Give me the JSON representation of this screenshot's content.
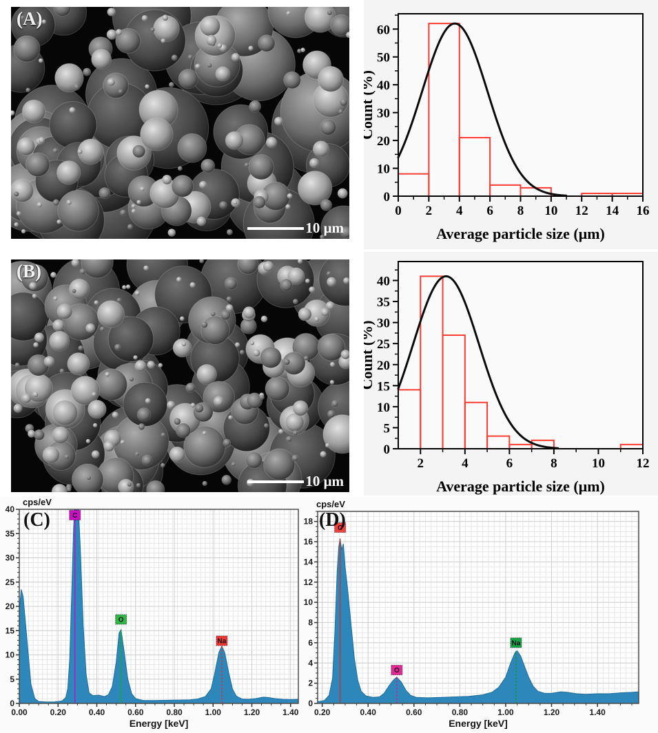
{
  "figure": {
    "panels": {
      "a": {
        "letter": "(A)",
        "scalebar": "10 μm"
      },
      "b": {
        "letter": "(B)",
        "scalebar": "10 μm"
      },
      "c": {
        "letter": "(C)"
      },
      "d": {
        "letter": "(D)"
      }
    }
  },
  "chart_data": [
    {
      "id": "hist-a",
      "type": "bar",
      "title": "",
      "xlabel": "Average particle size (μm)",
      "ylabel": "Count (%)",
      "bin_edges": [
        0,
        2,
        4,
        6,
        8,
        10,
        12,
        14,
        16
      ],
      "counts": [
        8,
        62,
        21,
        4,
        3,
        0,
        1,
        1
      ],
      "xlim": [
        0,
        16
      ],
      "ylim": [
        0,
        65.5
      ],
      "xticks": [
        0,
        2,
        4,
        6,
        8,
        10,
        12,
        14,
        16
      ],
      "xminor": [
        1,
        3,
        5,
        7,
        9,
        11,
        13,
        15
      ],
      "yticks": [
        0,
        10,
        20,
        30,
        40,
        50,
        60
      ],
      "yminor": [
        5,
        15,
        25,
        35,
        45,
        55,
        65
      ],
      "grid": false,
      "bar_color": "#fa3b31",
      "plot_bg": "#fbfafb",
      "curve": {
        "type": "gauss",
        "mu": 3.7,
        "sigma": 2.14,
        "amp": 62,
        "color": "#0a0a0a"
      }
    },
    {
      "id": "hist-b",
      "type": "bar",
      "title": "",
      "xlabel": "Average particle size (μm)",
      "ylabel": "Count (%)",
      "bin_edges": [
        1,
        2,
        3,
        4,
        5,
        6,
        7,
        8,
        9,
        10,
        11,
        12
      ],
      "counts": [
        14,
        41,
        27,
        11,
        3,
        1,
        2,
        0,
        0,
        0,
        1
      ],
      "xlim": [
        1,
        12
      ],
      "ylim": [
        0,
        44.5
      ],
      "xticks": [
        2,
        4,
        6,
        8,
        10,
        12
      ],
      "xminor": [
        3,
        5,
        7,
        9,
        11
      ],
      "yticks": [
        0,
        5,
        10,
        15,
        20,
        25,
        30,
        35,
        40
      ],
      "yminor": [
        2.5,
        7.5,
        12.5,
        17.5,
        22.5,
        27.5,
        32.5,
        37.5,
        42.5
      ],
      "grid": false,
      "bar_color": "#fa3b31",
      "plot_bg": "#fbfafb",
      "curve": {
        "type": "gauss",
        "mu": 3.15,
        "sigma": 1.48,
        "amp": 41,
        "color": "#0a0a0a"
      }
    },
    {
      "id": "eds-c",
      "type": "area",
      "title": "cps/eV",
      "xlabel": "Energy [keV]",
      "xlim": [
        0,
        1.44
      ],
      "ylim": [
        0,
        40
      ],
      "xticks": [
        0.0,
        0.2,
        0.4,
        0.6,
        0.8,
        1.0,
        1.2,
        1.4
      ],
      "yticks": [
        0,
        5,
        10,
        15,
        20,
        25,
        30,
        35,
        40
      ],
      "grid": true,
      "fill": "#2d87ba",
      "stroke": "#1c6d9c",
      "points": [
        [
          0,
          19
        ],
        [
          0.01,
          23.5
        ],
        [
          0.02,
          22
        ],
        [
          0.04,
          13
        ],
        [
          0.06,
          4
        ],
        [
          0.08,
          1
        ],
        [
          0.1,
          0.4
        ],
        [
          0.14,
          0.3
        ],
        [
          0.18,
          0.3
        ],
        [
          0.22,
          0.5
        ],
        [
          0.24,
          1.2
        ],
        [
          0.25,
          3
        ],
        [
          0.26,
          9
        ],
        [
          0.27,
          22
        ],
        [
          0.28,
          36
        ],
        [
          0.285,
          40
        ],
        [
          0.305,
          40
        ],
        [
          0.315,
          32
        ],
        [
          0.33,
          16
        ],
        [
          0.345,
          6
        ],
        [
          0.36,
          2.2
        ],
        [
          0.38,
          1.6
        ],
        [
          0.41,
          1.7
        ],
        [
          0.44,
          1.4
        ],
        [
          0.46,
          1.8
        ],
        [
          0.48,
          3.5
        ],
        [
          0.5,
          8.5
        ],
        [
          0.515,
          14.5
        ],
        [
          0.525,
          15.2
        ],
        [
          0.54,
          11
        ],
        [
          0.56,
          5
        ],
        [
          0.58,
          2
        ],
        [
          0.6,
          1
        ],
        [
          0.64,
          0.6
        ],
        [
          0.7,
          0.6
        ],
        [
          0.76,
          0.65
        ],
        [
          0.82,
          0.7
        ],
        [
          0.88,
          0.75
        ],
        [
          0.92,
          0.9
        ],
        [
          0.96,
          1.4
        ],
        [
          0.99,
          3
        ],
        [
          1.01,
          6.5
        ],
        [
          1.03,
          10.5
        ],
        [
          1.045,
          11.8
        ],
        [
          1.06,
          10.5
        ],
        [
          1.08,
          6.5
        ],
        [
          1.1,
          3
        ],
        [
          1.12,
          1.5
        ],
        [
          1.15,
          0.9
        ],
        [
          1.18,
          0.85
        ],
        [
          1.22,
          1
        ],
        [
          1.26,
          1.3
        ],
        [
          1.28,
          1.25
        ],
        [
          1.32,
          1
        ],
        [
          1.36,
          0.85
        ],
        [
          1.4,
          0.8
        ],
        [
          1.44,
          0.85
        ]
      ],
      "markers": [
        {
          "label": "C",
          "x": 0.287,
          "line_top": 40,
          "line": "#b418c6",
          "dash": null,
          "box": "#cb0fc4",
          "box_y": 38.8
        },
        {
          "label": "O",
          "x": 0.525,
          "line_top": 15.2,
          "line": "#18a83a",
          "dash": null,
          "box": "#2eb943",
          "box_y": 17.3
        },
        {
          "label": "Na",
          "x": 1.045,
          "line_top": 11.8,
          "line": "#cc3b33",
          "dash": "3 2",
          "box": "#ef3a31",
          "box_y": 12.9
        }
      ]
    },
    {
      "id": "eds-d",
      "type": "area",
      "title": "cps/eV",
      "xlabel": "Energy [keV]",
      "xlim": [
        0.18,
        1.58
      ],
      "ylim": [
        0,
        19
      ],
      "xticks": [
        0.2,
        0.4,
        0.6,
        0.8,
        1.0,
        1.2,
        1.4
      ],
      "yticks": [
        0,
        2,
        4,
        6,
        8,
        10,
        12,
        14,
        16,
        18
      ],
      "grid": true,
      "fill": "#2d87ba",
      "stroke": "#1c6d9c",
      "points": [
        [
          0.18,
          0.15
        ],
        [
          0.21,
          0.3
        ],
        [
          0.23,
          0.8
        ],
        [
          0.245,
          2.5
        ],
        [
          0.255,
          7
        ],
        [
          0.265,
          13
        ],
        [
          0.272,
          15.5
        ],
        [
          0.278,
          16.3
        ],
        [
          0.285,
          15.2
        ],
        [
          0.292,
          15.8
        ],
        [
          0.3,
          13.5
        ],
        [
          0.31,
          11.5
        ],
        [
          0.325,
          8
        ],
        [
          0.34,
          4.5
        ],
        [
          0.355,
          2.3
        ],
        [
          0.37,
          1.2
        ],
        [
          0.39,
          0.75
        ],
        [
          0.42,
          0.6
        ],
        [
          0.45,
          0.65
        ],
        [
          0.47,
          1
        ],
        [
          0.49,
          1.7
        ],
        [
          0.51,
          2.3
        ],
        [
          0.525,
          2.6
        ],
        [
          0.545,
          2.1
        ],
        [
          0.565,
          1.3
        ],
        [
          0.585,
          0.8
        ],
        [
          0.61,
          0.6
        ],
        [
          0.66,
          0.55
        ],
        [
          0.72,
          0.6
        ],
        [
          0.78,
          0.65
        ],
        [
          0.84,
          0.7
        ],
        [
          0.9,
          0.85
        ],
        [
          0.94,
          1.1
        ],
        [
          0.97,
          1.6
        ],
        [
          1,
          2.6
        ],
        [
          1.02,
          3.9
        ],
        [
          1.04,
          5
        ],
        [
          1.05,
          5.2
        ],
        [
          1.065,
          4.7
        ],
        [
          1.08,
          3.8
        ],
        [
          1.1,
          2.6
        ],
        [
          1.12,
          1.7
        ],
        [
          1.14,
          1.2
        ],
        [
          1.17,
          1
        ],
        [
          1.2,
          1
        ],
        [
          1.24,
          1.15
        ],
        [
          1.27,
          1.1
        ],
        [
          1.31,
          0.95
        ],
        [
          1.35,
          0.9
        ],
        [
          1.4,
          0.95
        ],
        [
          1.45,
          0.95
        ],
        [
          1.5,
          1.05
        ],
        [
          1.55,
          1.1
        ],
        [
          1.58,
          1.15
        ]
      ],
      "markers": [
        {
          "label": "C",
          "x": 0.278,
          "line_top": 16.3,
          "line": "#c03a33",
          "dash": null,
          "box": "#f2413a",
          "box_y": 17.4
        },
        {
          "label": "O",
          "x": 0.525,
          "line_top": 2.6,
          "line": "#d02090",
          "dash": "3 2",
          "box": "#e12a93",
          "box_y": 3.3
        },
        {
          "label": "Na",
          "x": 1.045,
          "line_top": 5.2,
          "line": "#0e9c35",
          "dash": "3 2",
          "box": "#12a83e",
          "box_y": 6.0
        }
      ]
    }
  ]
}
